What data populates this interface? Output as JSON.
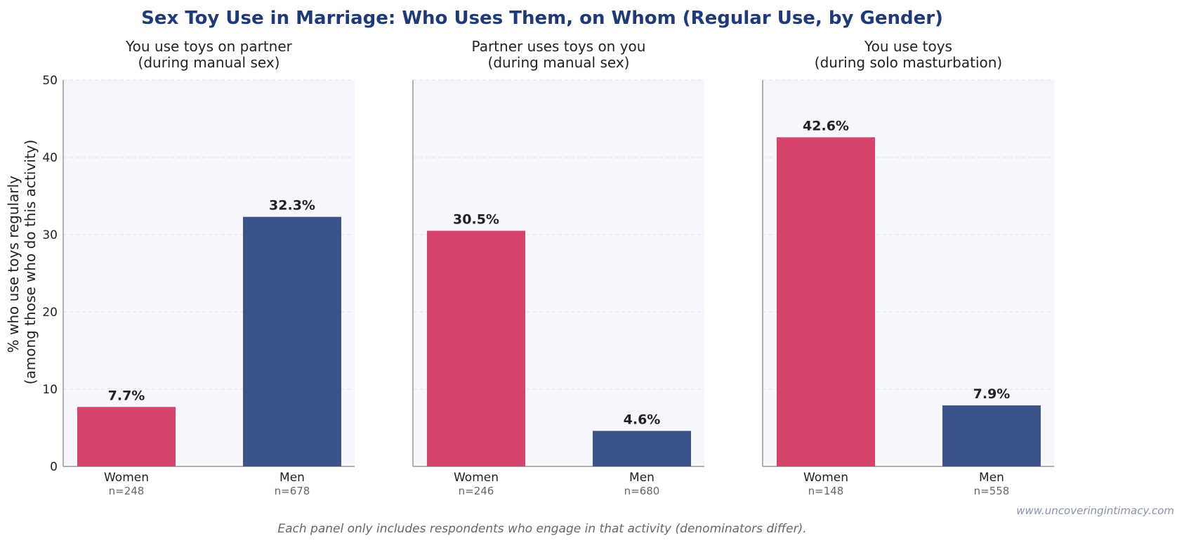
{
  "chart_data": {
    "type": "bar",
    "title": "Sex Toy Use in Marriage: Who Uses Them, on Whom (Regular Use, by Gender)",
    "ylabel_line1": "% who use toys regularly",
    "ylabel_line2": "(among those who do this activity)",
    "ylim": [
      0,
      50
    ],
    "yticks": [
      "0",
      "10",
      "20",
      "30",
      "40",
      "50"
    ],
    "grid": true,
    "categories": [
      "Women",
      "Men"
    ],
    "colors": {
      "Women": "#d6436b",
      "Men": "#3c5389"
    },
    "panels": [
      {
        "title_line1": "You use toys on partner",
        "title_line2": "(during manual sex)",
        "values": [
          7.7,
          32.3
        ],
        "value_labels": [
          "7.7%",
          "32.3%"
        ],
        "n_labels": [
          "n=248",
          "n=678"
        ]
      },
      {
        "title_line1": "Partner uses toys on you",
        "title_line2": "(during manual sex)",
        "values": [
          30.5,
          4.6
        ],
        "value_labels": [
          "30.5%",
          "4.6%"
        ],
        "n_labels": [
          "n=246",
          "n=680"
        ]
      },
      {
        "title_line1": "You use toys",
        "title_line2": "(during solo masturbation)",
        "values": [
          42.6,
          7.9
        ],
        "value_labels": [
          "42.6%",
          "7.9%"
        ],
        "n_labels": [
          "n=148",
          "n=558"
        ]
      }
    ],
    "footnote": "Each panel only includes respondents who engage in that activity (denominators differ).",
    "watermark": "www.uncoveringintimacy.com"
  }
}
